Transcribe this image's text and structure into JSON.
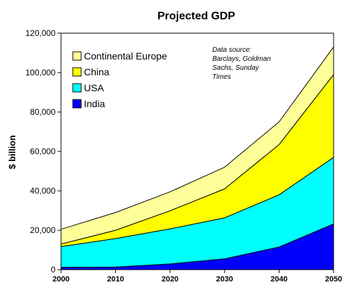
{
  "chart_data": {
    "type": "area",
    "stacked": true,
    "title": "Projected GDP",
    "xlabel": "",
    "ylabel": "$ billion",
    "x": [
      2000,
      2010,
      2020,
      2030,
      2040,
      2050
    ],
    "xlim": [
      2000,
      2050
    ],
    "ylim": [
      0,
      120000
    ],
    "y_ticks": [
      0,
      20000,
      40000,
      60000,
      80000,
      100000,
      120000
    ],
    "y_tick_labels": [
      "0",
      "20,000",
      "40,000",
      "60,000",
      "80,000",
      "100,000",
      "120,000"
    ],
    "x_tick_labels": [
      "2000",
      "2010",
      "2020",
      "2030",
      "2040",
      "2050"
    ],
    "grid": false,
    "legend": {
      "placement": "top-left",
      "order": [
        "Continental Europe",
        "China",
        "USA",
        "India"
      ]
    },
    "annotation": {
      "lines": [
        "Data source:",
        "Barclays, Goldman",
        "Sachs, Sunday",
        "Times"
      ]
    },
    "series": [
      {
        "name": "India",
        "color": "#0000ff",
        "values": [
          1200,
          1300,
          2900,
          5500,
          11500,
          23200
        ]
      },
      {
        "name": "USA",
        "color": "#00ffff",
        "values": [
          10500,
          14500,
          17800,
          20800,
          26500,
          33800
        ]
      },
      {
        "name": "China",
        "color": "#ffff00",
        "values": [
          1300,
          4200,
          9200,
          14700,
          25500,
          42000
        ]
      },
      {
        "name": "Continental Europe",
        "color": "#ffff99",
        "values": [
          7500,
          9000,
          9600,
          11000,
          11500,
          14000
        ]
      }
    ]
  }
}
